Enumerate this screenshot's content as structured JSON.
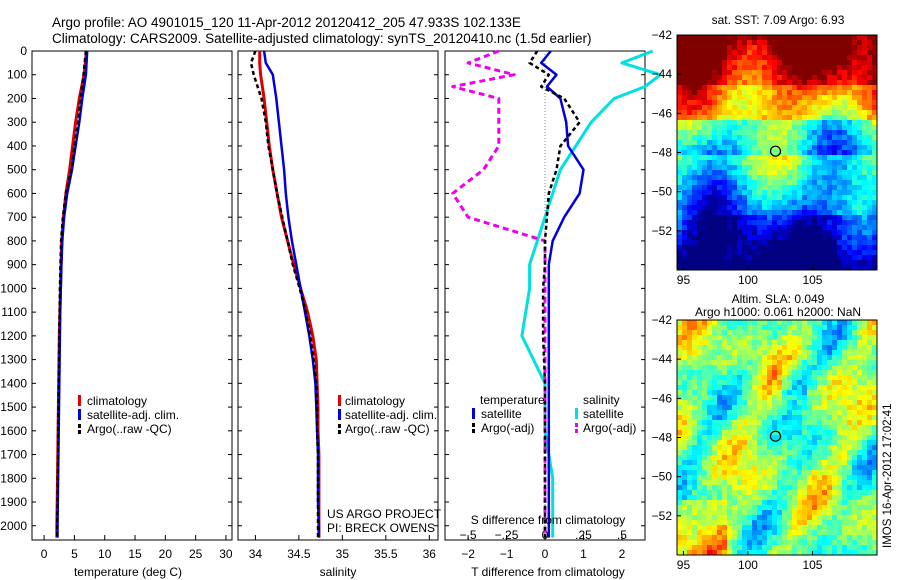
{
  "header": {
    "line1": "Argo profile: AO 4901015_120 11-Apr-2012 20120412_205 47.933S 102.133E",
    "line2": "Climatology: CARS2009. Satellite-adjusted climatology: synTS_20120410.nc (1.5d earlier)"
  },
  "colors": {
    "climatology": "#dd0000",
    "satellite": "#0000dd",
    "argo": "#000000",
    "satellite_sal": "#00e0e0",
    "argo_sal": "#ee00ee"
  },
  "chart_data": [
    {
      "type": "line",
      "id": "temperature",
      "xlabel": "temperature (deg C)",
      "ylabel": "",
      "xlim": [
        -2,
        31
      ],
      "ylim": [
        2060,
        0
      ],
      "xticks": [
        0,
        5,
        10,
        15,
        20,
        25,
        30
      ],
      "yticks": [
        0,
        100,
        200,
        300,
        400,
        500,
        600,
        700,
        800,
        900,
        1000,
        1100,
        1200,
        1300,
        1400,
        1500,
        1600,
        1700,
        1800,
        1900,
        2000
      ],
      "legend": [
        "climatology",
        "satellite-adj. clim.",
        "Argo(..raw -QC)"
      ],
      "depth": [
        0,
        100,
        200,
        300,
        400,
        500,
        600,
        700,
        800,
        900,
        1000,
        1100,
        1200,
        1300,
        1400,
        1500,
        1600,
        1700,
        1800,
        1900,
        2000,
        2050
      ],
      "series": [
        {
          "name": "climatology",
          "values": [
            7.0,
            6.6,
            5.8,
            5.2,
            4.7,
            4.2,
            3.6,
            3.2,
            2.9,
            2.8,
            2.7,
            2.6,
            2.5,
            2.45,
            2.4,
            2.35,
            2.3,
            2.25,
            2.2,
            2.15,
            2.1,
            2.1
          ]
        },
        {
          "name": "satellite-adj. clim.",
          "values": [
            7.1,
            6.9,
            6.3,
            5.8,
            5.2,
            4.6,
            3.8,
            3.3,
            3.0,
            2.85,
            2.75,
            2.65,
            2.6,
            2.55,
            2.5,
            2.45,
            2.4,
            2.35,
            2.3,
            2.25,
            2.2,
            2.2
          ]
        },
        {
          "name": "Argo(..raw -QC)",
          "values": [
            6.9,
            6.5,
            6.0,
            5.6,
            5.0,
            4.5,
            3.6,
            3.1,
            2.8,
            2.7,
            2.6,
            2.55,
            2.5,
            2.45,
            2.4,
            2.35,
            2.3,
            2.3,
            2.25,
            2.2,
            2.15,
            2.15
          ]
        }
      ]
    },
    {
      "type": "line",
      "id": "salinity",
      "xlabel": "salinity",
      "ylabel": "",
      "xlim": [
        33.8,
        36.1
      ],
      "ylim": [
        2060,
        0
      ],
      "xticks": [
        34,
        34.5,
        35,
        35.5,
        36
      ],
      "legend": [
        "climatology",
        "satellite-adj. clim.",
        "Argo(..raw -QC)"
      ],
      "note_line1": "US ARGO PROJECT",
      "note_line2": "PI: BRECK OWENS",
      "depth": [
        0,
        50,
        100,
        200,
        300,
        400,
        500,
        600,
        700,
        800,
        900,
        1000,
        1100,
        1200,
        1300,
        1400,
        1500,
        1600,
        1700,
        1800,
        1900,
        2000,
        2050
      ],
      "series": [
        {
          "name": "climatology",
          "values": [
            34.05,
            34.05,
            34.06,
            34.1,
            34.13,
            34.16,
            34.2,
            34.25,
            34.3,
            34.37,
            34.44,
            34.52,
            34.6,
            34.66,
            34.7,
            34.71,
            34.72,
            34.72,
            34.73,
            34.73,
            34.73,
            34.73,
            34.73
          ]
        },
        {
          "name": "satellite-adj. clim.",
          "values": [
            34.1,
            34.12,
            34.2,
            34.24,
            34.27,
            34.3,
            34.33,
            34.35,
            34.38,
            34.42,
            34.47,
            34.52,
            34.57,
            34.62,
            34.66,
            34.69,
            34.7,
            34.71,
            34.72,
            34.72,
            34.72,
            34.73,
            34.73
          ]
        },
        {
          "name": "Argo(..raw -QC)",
          "values": [
            34.0,
            33.95,
            33.98,
            34.07,
            34.12,
            34.15,
            34.2,
            34.25,
            34.31,
            34.37,
            34.43,
            34.51,
            34.58,
            34.63,
            34.67,
            34.7,
            34.71,
            34.71,
            34.72,
            34.72,
            34.72,
            34.72,
            34.72
          ]
        }
      ]
    },
    {
      "type": "line",
      "id": "difference",
      "xlabel": "T difference from climatology",
      "xlabel_top": "S difference from climatology",
      "xlim": [
        -2.6,
        2.6
      ],
      "ylim": [
        2060,
        0
      ],
      "xticks_T": [
        -2,
        -1,
        0,
        1,
        2
      ],
      "xticks_S": [
        -0.5,
        -0.25,
        0,
        0.25,
        0.5
      ],
      "legend_title_T": "temperature",
      "legend_title_S": "salinity",
      "legend_T": [
        "satellite",
        "Argo(-adj)"
      ],
      "legend_S": [
        "satellite",
        "Argo(-adj)"
      ],
      "depth": [
        0,
        50,
        100,
        150,
        200,
        300,
        400,
        500,
        600,
        700,
        800,
        900,
        1000,
        1200,
        1400,
        1600,
        1800,
        2000,
        2050
      ],
      "series": [
        {
          "name": "satellite (temperature)",
          "values": [
            0.15,
            -0.1,
            0.3,
            0.05,
            0.4,
            0.55,
            0.6,
            1.0,
            0.9,
            0.5,
            0.2,
            0.1,
            0.1,
            0.1,
            0.1,
            0.1,
            0.1,
            0.1,
            0.1
          ]
        },
        {
          "name": "Argo(-adj) (temperature)",
          "values": [
            -0.2,
            -0.4,
            0.1,
            -0.1,
            0.5,
            0.9,
            0.4,
            0.3,
            0.1,
            0.05,
            0.0,
            0.0,
            -0.05,
            -0.05,
            0.0,
            0.0,
            0.0,
            0.0,
            0.0
          ]
        },
        {
          "name": "satellite (salinity)",
          "values": [
            0.7,
            0.5,
            0.75,
            0.65,
            0.45,
            0.3,
            0.2,
            0.1,
            0.05,
            0.0,
            -0.05,
            -0.1,
            -0.1,
            -0.15,
            0.0,
            0.0,
            0.05,
            0.05,
            0.05
          ]
        },
        {
          "name": "Argo(-adj) (salinity)",
          "values": [
            -0.3,
            -0.5,
            -0.2,
            -0.6,
            -0.3,
            -0.3,
            -0.3,
            -0.4,
            -0.6,
            -0.5,
            0.0,
            0.0,
            0.0,
            0.0,
            0.0,
            0.0,
            0.0,
            0.0,
            0.0
          ]
        }
      ]
    },
    {
      "type": "heatmap",
      "id": "sst",
      "title": "sat. SST: 7.09 Argo: 6.93",
      "xlim": [
        94.5,
        110
      ],
      "ylim": [
        -54,
        -42
      ],
      "xticks": [
        95,
        100,
        105
      ],
      "yticks": [
        -42,
        -44,
        -46,
        -48,
        -50,
        -52
      ],
      "marker": {
        "lon": 102.133,
        "lat": -47.933
      }
    },
    {
      "type": "heatmap",
      "id": "sla",
      "title_line1": "Altim. SLA: 0.049",
      "title_line2": "Argo h1000: 0.061 h2000: NaN",
      "xlim": [
        94.5,
        110
      ],
      "ylim": [
        -54,
        -42
      ],
      "xticks": [
        95,
        100,
        105
      ],
      "yticks": [
        -42,
        -44,
        -46,
        -48,
        -50,
        -52
      ],
      "marker": {
        "lon": 102.133,
        "lat": -47.933
      },
      "footer": "IMOS 16-Apr-2012 17:02:41"
    }
  ]
}
